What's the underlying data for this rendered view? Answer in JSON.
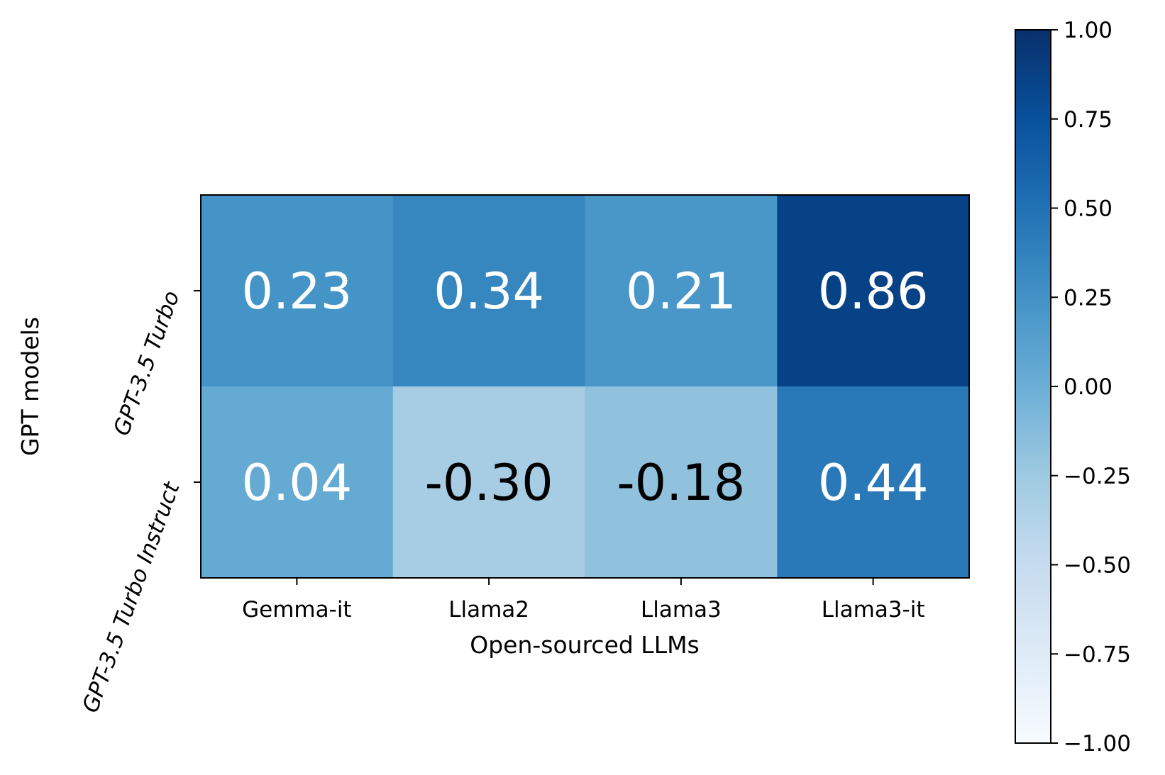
{
  "chart_data": {
    "type": "heatmap",
    "title": "",
    "xlabel": "Open-sourced LLMs",
    "ylabel": "GPT models",
    "x_categories": [
      "Gemma-it",
      "Llama2",
      "Llama3",
      "Llama3-it"
    ],
    "y_categories": [
      "GPT-3.5 Turbo",
      "GPT-3.5 Turbo Instruct"
    ],
    "values": [
      [
        0.23,
        0.34,
        0.21,
        0.86
      ],
      [
        0.04,
        -0.3,
        -0.18,
        0.44
      ]
    ],
    "value_labels": [
      [
        "0.23",
        "0.34",
        "0.21",
        "0.86"
      ],
      [
        "0.04",
        "-0.30",
        "-0.18",
        "0.44"
      ]
    ],
    "colormap": "Blues",
    "vmin": -1.0,
    "vmax": 1.0,
    "colorbar_ticks": [
      1.0,
      0.75,
      0.5,
      0.25,
      0.0,
      -0.25,
      -0.5,
      -0.75,
      -1.0
    ],
    "colorbar_tick_labels": [
      "1.00",
      "0.75",
      "0.50",
      "0.25",
      "0.00",
      "−0.25",
      "−0.50",
      "−0.75",
      "−1.00"
    ],
    "text_colors": {
      "light": "#ffffff",
      "dark": "#000000"
    },
    "cmap_stops": [
      "#f7fbff",
      "#deebf7",
      "#c6dbef",
      "#9ecae1",
      "#6baed6",
      "#4292c6",
      "#2171b5",
      "#08519c",
      "#08306b"
    ]
  }
}
